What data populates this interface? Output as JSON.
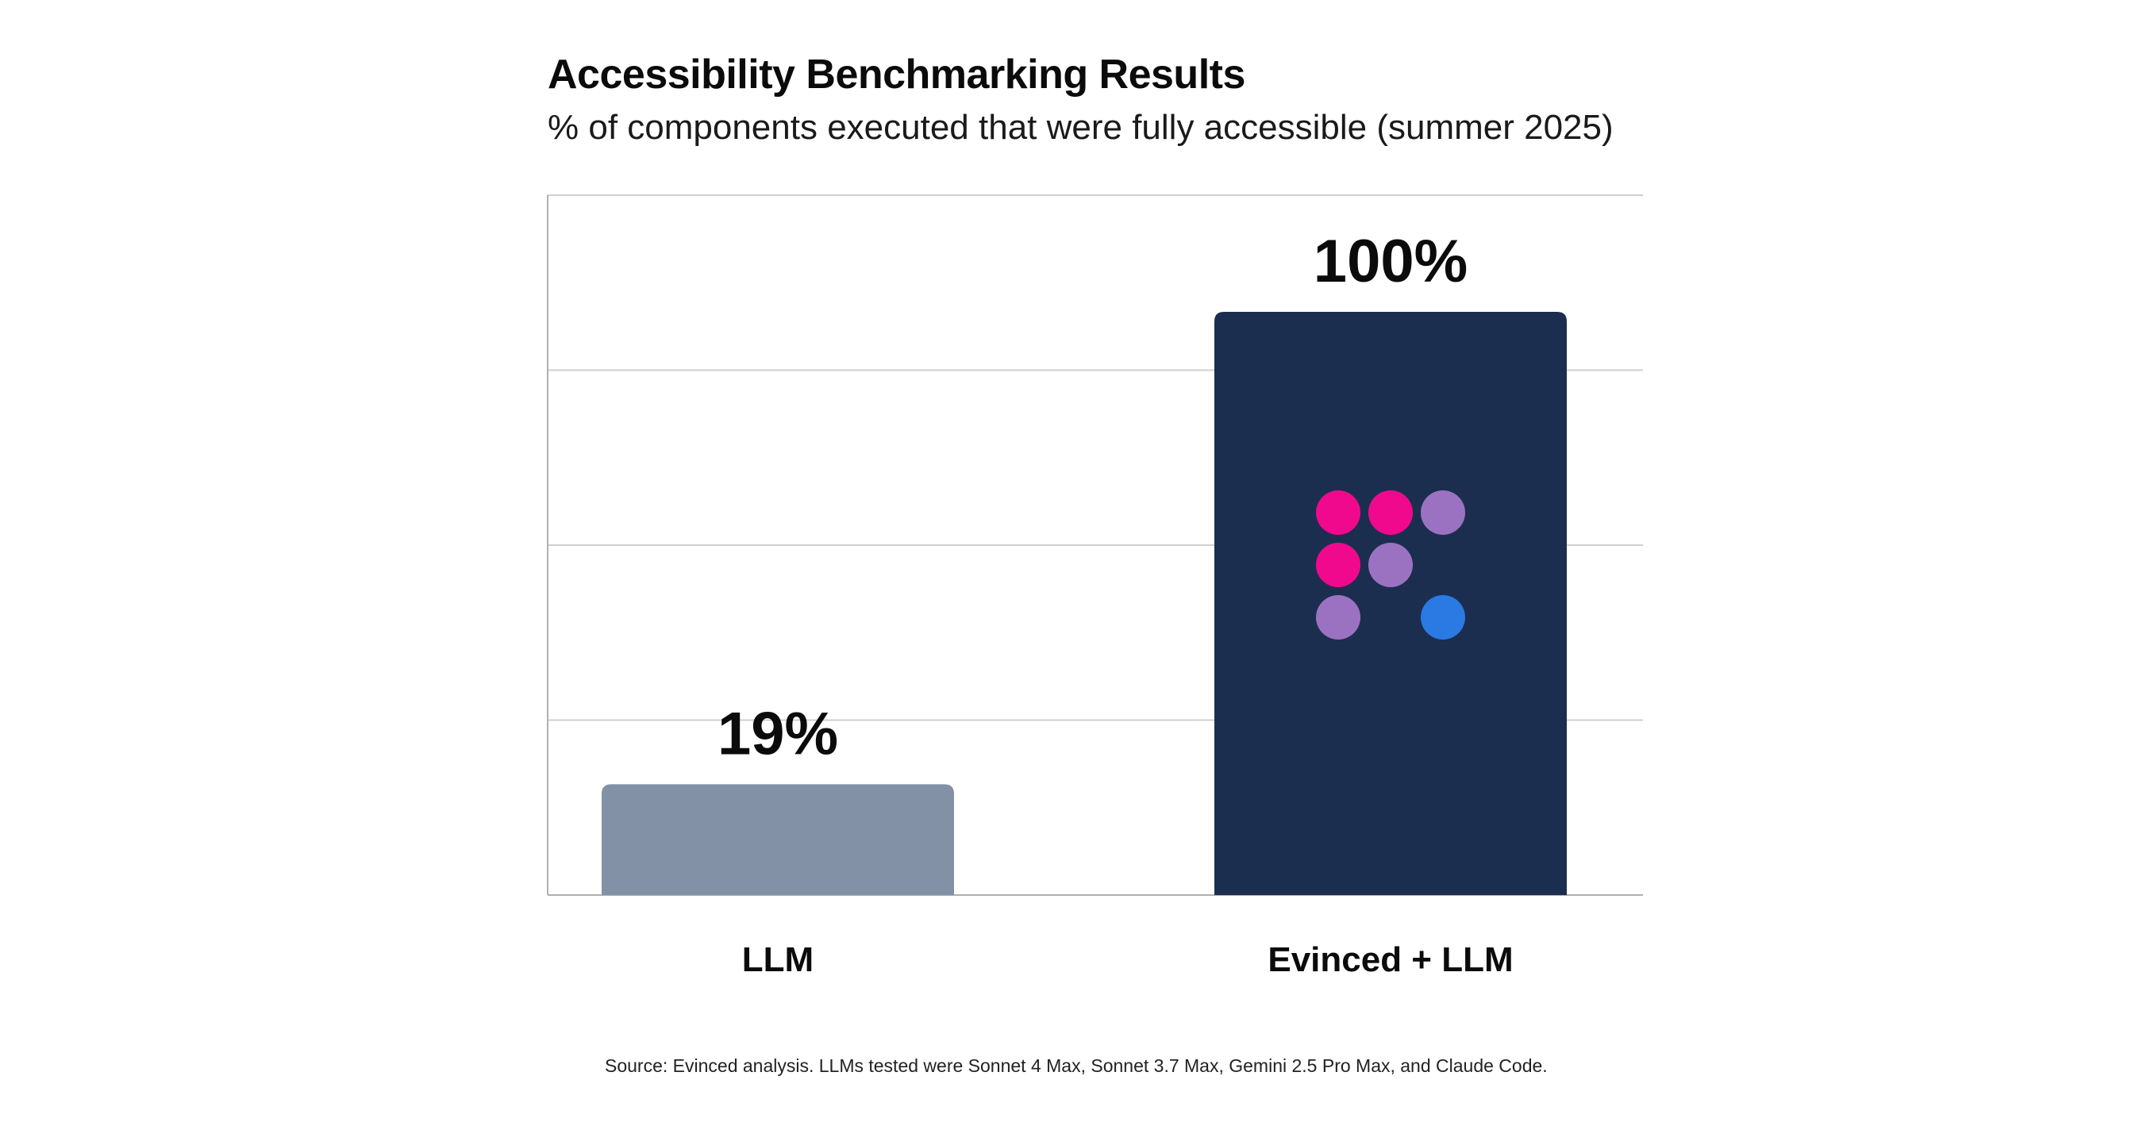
{
  "chart_data": {
    "type": "bar",
    "title": "Accessibility Benchmarking Results",
    "subtitle": "% of components executed that were fully accessible (summer 2025)",
    "categories": [
      "LLM",
      "Evinced + LLM"
    ],
    "values": [
      19,
      100
    ],
    "value_labels": [
      "19%",
      "100%"
    ],
    "xlabel": "",
    "ylabel": "",
    "ylim": [
      0,
      120
    ],
    "grid": true,
    "gridline_values": [
      30,
      60,
      90,
      120
    ],
    "colors": {
      "llm_bar": "#8391a7",
      "evinced_bar": "#1c2e4f",
      "gridline": "#cfcfcf",
      "axis": "#b0b0b0"
    }
  },
  "logo": {
    "icon": "evinced-logo-icon",
    "dot_colors": [
      "#f0098d",
      "#f0098d",
      "#9b72c2",
      "#f0098d",
      "#9b72c2",
      "#9b72c2",
      "#2b79e3"
    ]
  },
  "source_note": "Source:  Evinced analysis. LLMs tested were Sonnet 4 Max, Sonnet 3.7 Max, Gemini 2.5 Pro Max, and Claude Code."
}
